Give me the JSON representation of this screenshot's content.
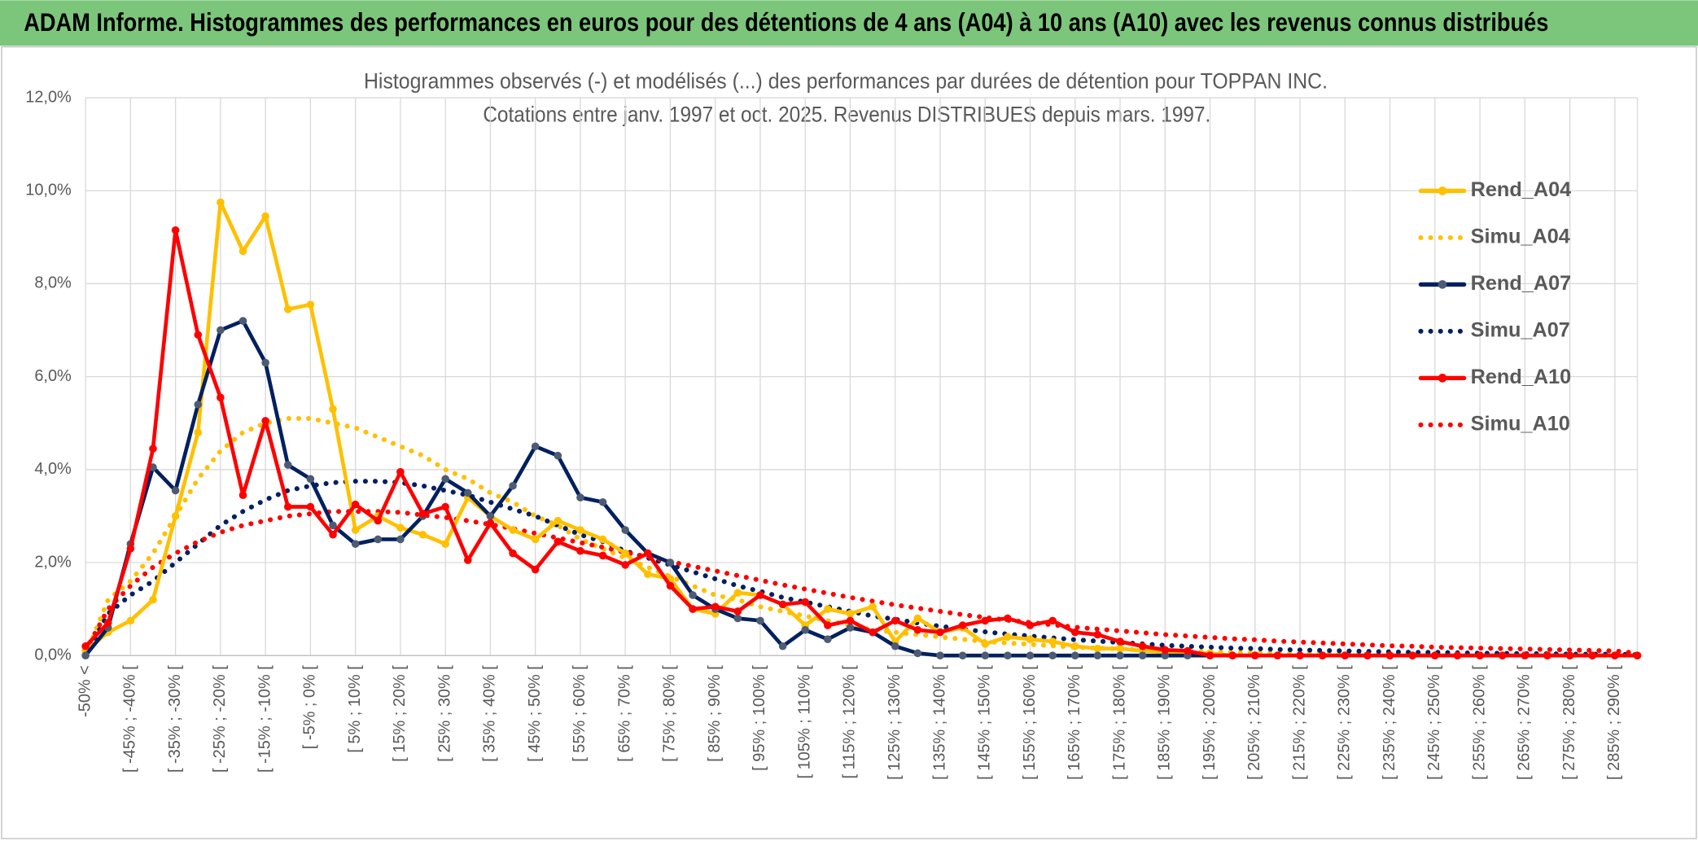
{
  "banner": "ADAM Informe. Histogrammes des performances en euros pour des détentions de 4 ans (A04) à 10 ans (A10) avec les revenus connus distribués",
  "chart_data": {
    "type": "line",
    "title": "Histogrammes observés (-) et modélisés (...) des performances par durées de détention pour TOPPAN INC.",
    "subtitle": "Cotations entre janv. 1997 et oct. 2025. Revenus DISTRIBUES depuis mars. 1997.",
    "categories": [
      "-50% <",
      null,
      "[ -45% ; -40% [",
      null,
      "[ -35% ; -30% [",
      null,
      "[ -25% ; -20% [",
      null,
      "[ -15% ; -10% [",
      null,
      "[ -5% ; 0% [",
      null,
      "[ 5% ; 10% [",
      null,
      "[ 15% ; 20% [",
      null,
      "[ 25% ; 30% [",
      null,
      "[ 35% ; 40% [",
      null,
      "[ 45% ; 50% [",
      null,
      "[ 55% ; 60% [",
      null,
      "[ 65% ; 70% [",
      null,
      "[ 75% ; 80% [",
      null,
      "[ 85% ; 90% [",
      null,
      "[ 95% ; 100% [",
      null,
      "[ 105% ; 110% [",
      null,
      "[ 115% ; 120% [",
      null,
      "[ 125% ; 130% [",
      null,
      "[ 135% ; 140% [",
      null,
      "[ 145% ; 150% [",
      null,
      "[ 155% ; 160% [",
      null,
      "[ 165% ; 170% [",
      null,
      "[ 175% ; 180% [",
      null,
      "[ 185% ; 190% [",
      null,
      "[ 195% ; 200% [",
      null,
      "[ 205% ; 210% [",
      null,
      "[ 215% ; 220% [",
      null,
      "[ 225% ; 230% [",
      null,
      "[ 235% ; 240% [",
      null,
      "[ 245% ; 250% [",
      null,
      "[ 255% ; 260% [",
      null,
      "[ 265% ; 270% [",
      null,
      "[ 275% ; 280% [",
      null,
      "[ 285% ; 290% [",
      null
    ],
    "series": [
      {
        "name": "Rend_A04",
        "color": "#ffc000",
        "dash": "solid",
        "markers": true,
        "values": [
          0.1,
          0.5,
          0.75,
          1.2,
          3.0,
          4.8,
          9.75,
          8.7,
          9.45,
          7.45,
          7.55,
          5.3,
          2.7,
          3.0,
          2.75,
          2.6,
          2.4,
          3.4,
          3.0,
          2.7,
          2.5,
          2.9,
          2.7,
          2.5,
          2.2,
          1.75,
          1.65,
          1.0,
          0.9,
          1.35,
          1.3,
          1.1,
          0.65,
          1.0,
          0.9,
          1.05,
          0.3,
          0.8,
          0.5,
          0.6,
          0.25,
          0.4,
          0.35,
          0.3,
          0.2,
          0.15,
          0.15,
          0.1,
          0.08,
          0.05,
          0.05,
          0,
          0,
          0,
          0,
          0,
          0,
          0,
          0,
          0,
          0,
          0,
          0,
          0,
          0,
          0,
          0,
          0,
          0,
          0
        ]
      },
      {
        "name": "Simu_A04",
        "color": "#ffc000",
        "dash": "dotted",
        "markers": false,
        "values": [
          0,
          1.2,
          1.6,
          2.2,
          3.0,
          3.8,
          4.4,
          4.8,
          5.0,
          5.1,
          5.1,
          5.0,
          4.9,
          4.7,
          4.5,
          4.3,
          4.0,
          3.8,
          3.5,
          3.3,
          3.0,
          2.8,
          2.5,
          2.3,
          2.1,
          1.9,
          1.7,
          1.5,
          1.3,
          1.2,
          1.05,
          0.95,
          0.85,
          0.75,
          0.65,
          0.55,
          0.5,
          0.45,
          0.4,
          0.35,
          0.3,
          0.27,
          0.24,
          0.21,
          0.18,
          0.16,
          0.14,
          0.12,
          0.1,
          0.09,
          0.08,
          0.07,
          0.06,
          0.05,
          0.04,
          0.04,
          0.03,
          0.03,
          0.02,
          0.02,
          0.02,
          0.01,
          0.01,
          0.01,
          0.01,
          0.01,
          0.01,
          0,
          0,
          0
        ]
      },
      {
        "name": "Rend_A07",
        "color": "#002060",
        "dash": "solid",
        "markers": true,
        "values": [
          0,
          0.6,
          2.4,
          4.05,
          3.55,
          5.4,
          7.0,
          7.2,
          6.3,
          4.1,
          3.8,
          2.8,
          2.4,
          2.5,
          2.5,
          3.0,
          3.8,
          3.5,
          3.0,
          3.65,
          4.5,
          4.3,
          3.4,
          3.3,
          2.7,
          2.2,
          2.0,
          1.3,
          1.0,
          0.8,
          0.75,
          0.2,
          0.55,
          0.35,
          0.6,
          0.5,
          0.2,
          0.05,
          0,
          0,
          0,
          0,
          0,
          0,
          0,
          0,
          0,
          0,
          0,
          0,
          0,
          0,
          0,
          0,
          0,
          0,
          0,
          0,
          0,
          0,
          0,
          0,
          0,
          0,
          0,
          0,
          0,
          0,
          0,
          0
        ]
      },
      {
        "name": "Simu_A07",
        "color": "#002060",
        "dash": "dotted",
        "markers": false,
        "values": [
          0,
          0.9,
          1.3,
          1.6,
          2.0,
          2.4,
          2.8,
          3.1,
          3.35,
          3.55,
          3.65,
          3.72,
          3.75,
          3.75,
          3.72,
          3.65,
          3.55,
          3.45,
          3.3,
          3.15,
          3.0,
          2.8,
          2.6,
          2.45,
          2.25,
          2.1,
          1.95,
          1.8,
          1.65,
          1.5,
          1.38,
          1.25,
          1.15,
          1.05,
          0.95,
          0.85,
          0.78,
          0.7,
          0.63,
          0.57,
          0.51,
          0.46,
          0.42,
          0.38,
          0.34,
          0.31,
          0.28,
          0.25,
          0.22,
          0.2,
          0.18,
          0.16,
          0.15,
          0.13,
          0.12,
          0.11,
          0.1,
          0.09,
          0.08,
          0.07,
          0.07,
          0.06,
          0.05,
          0.05,
          0.04,
          0.04,
          0.03,
          0.03,
          0.03,
          0.02
        ]
      },
      {
        "name": "Rend_A10",
        "color": "#ff0000",
        "dash": "solid",
        "markers": true,
        "values": [
          0.2,
          0.7,
          2.3,
          4.45,
          9.15,
          6.9,
          5.55,
          3.45,
          5.05,
          3.2,
          3.2,
          2.6,
          3.25,
          2.9,
          3.95,
          3.05,
          3.2,
          2.05,
          2.85,
          2.2,
          1.85,
          2.45,
          2.25,
          2.15,
          1.95,
          2.2,
          1.5,
          1.0,
          1.05,
          0.95,
          1.3,
          1.1,
          1.15,
          0.65,
          0.75,
          0.5,
          0.75,
          0.55,
          0.5,
          0.65,
          0.75,
          0.8,
          0.65,
          0.75,
          0.5,
          0.45,
          0.3,
          0.2,
          0.12,
          0.1,
          0,
          0,
          0,
          0,
          0,
          0,
          0,
          0,
          0,
          0,
          0,
          0,
          0,
          0,
          0,
          0,
          0,
          0,
          0,
          0
        ]
      },
      {
        "name": "Simu_A10",
        "color": "#ff0000",
        "dash": "dotted",
        "markers": false,
        "values": [
          0.1,
          1.0,
          1.5,
          1.9,
          2.2,
          2.45,
          2.65,
          2.8,
          2.9,
          3.0,
          3.05,
          3.1,
          3.1,
          3.1,
          3.08,
          3.02,
          2.97,
          2.9,
          2.82,
          2.73,
          2.63,
          2.53,
          2.43,
          2.33,
          2.22,
          2.12,
          2.02,
          1.92,
          1.82,
          1.72,
          1.62,
          1.52,
          1.43,
          1.34,
          1.25,
          1.17,
          1.09,
          1.02,
          0.95,
          0.88,
          0.82,
          0.76,
          0.71,
          0.66,
          0.61,
          0.57,
          0.53,
          0.49,
          0.45,
          0.42,
          0.39,
          0.36,
          0.34,
          0.31,
          0.29,
          0.27,
          0.25,
          0.23,
          0.21,
          0.2,
          0.18,
          0.17,
          0.16,
          0.15,
          0.14,
          0.13,
          0.12,
          0.11,
          0.1,
          0.05
        ]
      }
    ],
    "ylim": [
      0,
      12
    ],
    "yticks": [
      {
        "value": 0,
        "label": "0,0%"
      },
      {
        "value": 2,
        "label": "2,0%"
      },
      {
        "value": 4,
        "label": "4,0%"
      },
      {
        "value": 6,
        "label": "6,0%"
      },
      {
        "value": 8,
        "label": "8,0%"
      },
      {
        "value": 10,
        "label": "10,0%"
      },
      {
        "value": 12,
        "label": "12,0%"
      }
    ],
    "grid": true,
    "legend": "right"
  }
}
